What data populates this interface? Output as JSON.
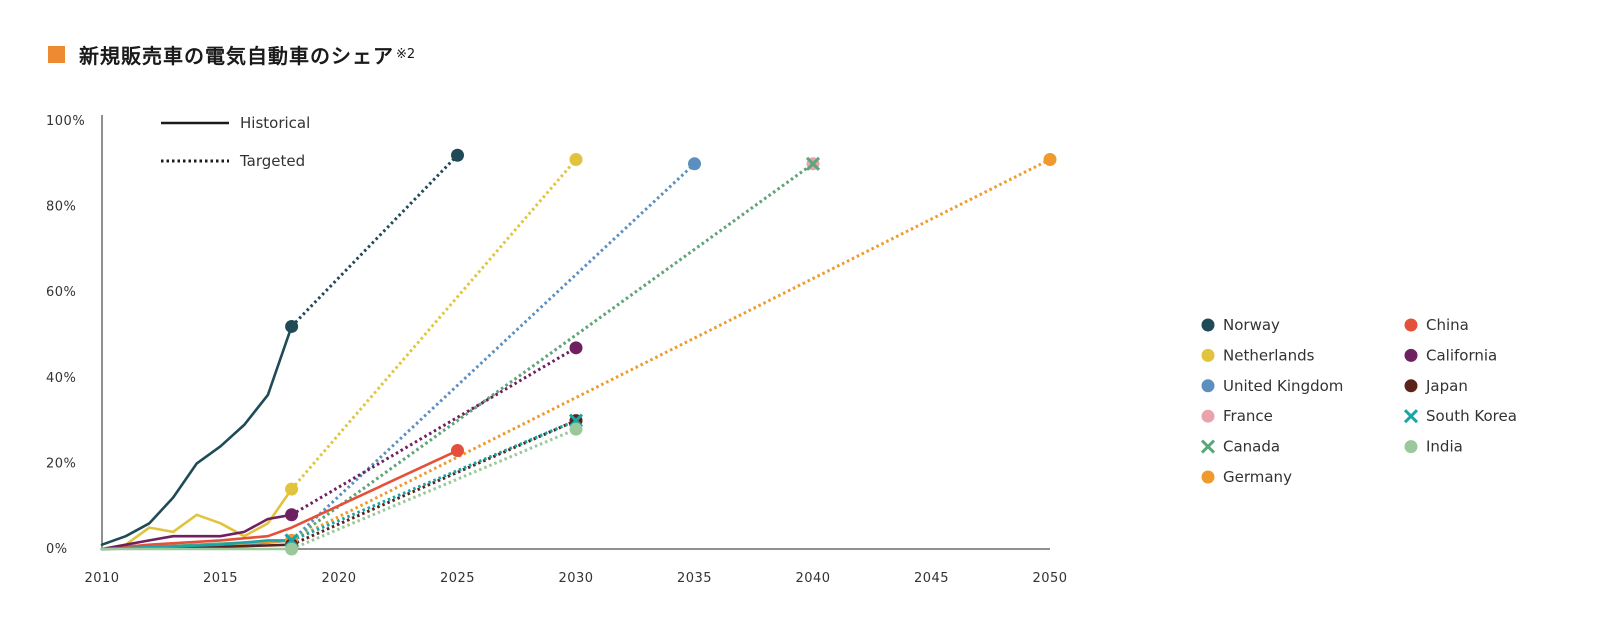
{
  "title": "新規販売車の電気自動車のシェア",
  "title_note": "※2",
  "chart_data": {
    "type": "line",
    "x_ticks": [
      "2010",
      "2015",
      "2020",
      "2025",
      "2030",
      "2035",
      "2040",
      "2045",
      "2050"
    ],
    "y_ticks": [
      "0%",
      "20%",
      "40%",
      "60%",
      "80%",
      "100%"
    ],
    "xlim": [
      2010,
      2050
    ],
    "ylim": [
      0,
      100
    ],
    "style_legend": [
      {
        "label": "Historical",
        "style": "solid"
      },
      {
        "label": "Targeted",
        "style": "dotted"
      }
    ],
    "series": [
      {
        "name": "Norway",
        "color": "#1f4a56",
        "marker": "circle",
        "historical": [
          [
            2010,
            1
          ],
          [
            2011,
            3
          ],
          [
            2012,
            6
          ],
          [
            2013,
            12
          ],
          [
            2014,
            20
          ],
          [
            2015,
            24
          ],
          [
            2016,
            29
          ],
          [
            2017,
            36
          ],
          [
            2018,
            52
          ]
        ],
        "target": [
          [
            2018,
            52
          ],
          [
            2025,
            92
          ]
        ]
      },
      {
        "name": "Netherlands",
        "color": "#e1c43c",
        "marker": "circle",
        "historical": [
          [
            2010,
            0
          ],
          [
            2011,
            1
          ],
          [
            2012,
            5
          ],
          [
            2013,
            4
          ],
          [
            2014,
            8
          ],
          [
            2015,
            6
          ],
          [
            2016,
            3
          ],
          [
            2017,
            6
          ],
          [
            2018,
            14
          ]
        ],
        "target": [
          [
            2018,
            14
          ],
          [
            2030,
            91
          ]
        ]
      },
      {
        "name": "United Kingdom",
        "color": "#5b8fc0",
        "marker": "circle",
        "historical": [
          [
            2010,
            0
          ],
          [
            2015,
            0.5
          ],
          [
            2018,
            2
          ]
        ],
        "target": [
          [
            2018,
            2
          ],
          [
            2035,
            90
          ]
        ]
      },
      {
        "name": "France",
        "color": "#e8a3ae",
        "marker": "circle",
        "historical": [
          [
            2010,
            0
          ],
          [
            2015,
            1
          ],
          [
            2018,
            2
          ]
        ],
        "target": [
          [
            2018,
            2
          ],
          [
            2040,
            90
          ]
        ]
      },
      {
        "name": "Canada",
        "color": "#5aa87a",
        "marker": "x",
        "historical": [
          [
            2010,
            0
          ],
          [
            2018,
            2
          ]
        ],
        "target": [
          [
            2018,
            2
          ],
          [
            2040,
            90
          ]
        ]
      },
      {
        "name": "Germany",
        "color": "#ee9a2c",
        "marker": "circle",
        "historical": [
          [
            2010,
            0
          ],
          [
            2015,
            1
          ],
          [
            2018,
            2
          ]
        ],
        "target": [
          [
            2018,
            2
          ],
          [
            2050,
            91
          ]
        ]
      },
      {
        "name": "China",
        "color": "#e4503a",
        "marker": "circle",
        "historical": [
          [
            2010,
            0
          ],
          [
            2012,
            1
          ],
          [
            2015,
            2
          ],
          [
            2017,
            3
          ],
          [
            2018,
            5
          ],
          [
            2025,
            23
          ]
        ],
        "target": []
      },
      {
        "name": "California",
        "color": "#6f2060",
        "marker": "circle",
        "historical": [
          [
            2010,
            0
          ],
          [
            2012,
            2
          ],
          [
            2013,
            3
          ],
          [
            2015,
            3
          ],
          [
            2016,
            4
          ],
          [
            2017,
            7
          ],
          [
            2018,
            8
          ]
        ],
        "target": [
          [
            2018,
            8
          ],
          [
            2030,
            47
          ]
        ]
      },
      {
        "name": "Japan",
        "color": "#5a241b",
        "marker": "circle",
        "historical": [
          [
            2010,
            0
          ],
          [
            2015,
            0.5
          ],
          [
            2018,
            1
          ]
        ],
        "target": [
          [
            2018,
            1
          ],
          [
            2030,
            30
          ]
        ]
      },
      {
        "name": "South Korea",
        "color": "#1aa6a8",
        "marker": "x",
        "historical": [
          [
            2010,
            0
          ],
          [
            2015,
            1
          ],
          [
            2017,
            2
          ],
          [
            2018,
            2
          ]
        ],
        "target": [
          [
            2018,
            2
          ],
          [
            2030,
            30
          ]
        ]
      },
      {
        "name": "India",
        "color": "#9ac89a",
        "marker": "circle",
        "historical": [
          [
            2010,
            0
          ],
          [
            2018,
            0
          ]
        ],
        "target": [
          [
            2018,
            0
          ],
          [
            2030,
            28
          ]
        ]
      }
    ]
  }
}
